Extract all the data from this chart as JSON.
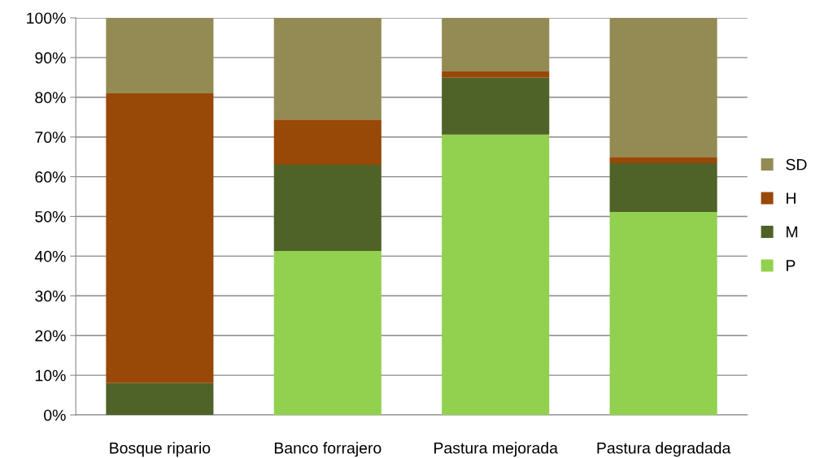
{
  "chart_data": {
    "type": "bar",
    "stacked": true,
    "categories": [
      "Bosque ripario",
      "Banco forrajero",
      "Pastura mejorada",
      "Pastura degradada"
    ],
    "series": [
      {
        "name": "P",
        "color": "#92d050",
        "values": [
          0,
          41.3,
          70.6,
          51.1
        ]
      },
      {
        "name": "M",
        "color": "#4f6228",
        "values": [
          8,
          21.7,
          14.3,
          12.3
        ]
      },
      {
        "name": "H",
        "color": "#984807",
        "values": [
          73,
          11.4,
          1.6,
          1.6
        ]
      },
      {
        "name": "SD",
        "color": "#948a54",
        "values": [
          19,
          25.6,
          13.5,
          35
        ]
      }
    ],
    "ylim": [
      0,
      100
    ],
    "yticks": [
      {
        "value": 0,
        "label": "0%"
      },
      {
        "value": 10,
        "label": "10%"
      },
      {
        "value": 20,
        "label": "20%"
      },
      {
        "value": 30,
        "label": "30%"
      },
      {
        "value": 40,
        "label": "40%"
      },
      {
        "value": 50,
        "label": "50%"
      },
      {
        "value": 60,
        "label": "60%"
      },
      {
        "value": 70,
        "label": "70%"
      },
      {
        "value": 80,
        "label": "80%"
      },
      {
        "value": 90,
        "label": "90%"
      },
      {
        "value": 100,
        "label": "100%"
      }
    ],
    "grid": "y",
    "legend": "right"
  }
}
